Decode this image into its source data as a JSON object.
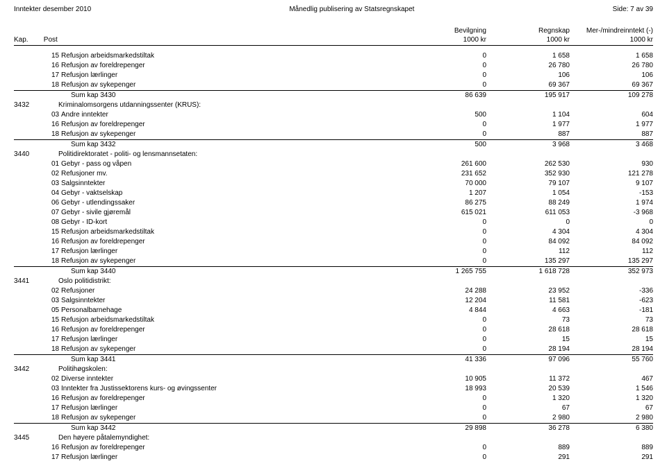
{
  "header": {
    "left": "Inntekter desember 2010",
    "center": "Månedlig publisering av Statsregnskapet",
    "right": "Side: 7 av 39"
  },
  "columns": {
    "kap": "Kap.",
    "post": "Post",
    "c1a": "Bevilgning",
    "c1b": "1000 kr",
    "c2a": "Regnskap",
    "c2b": "1000 kr",
    "c3a": "Mer-/mindreinntekt (-)",
    "c3b": "1000 kr"
  },
  "rows": [
    {
      "post": "15",
      "label": "Refusjon arbeidsmarkedstiltak",
      "c1": "0",
      "c2": "1 658",
      "c3": "1 658"
    },
    {
      "post": "16",
      "label": "Refusjon av foreldrepenger",
      "c1": "0",
      "c2": "26 780",
      "c3": "26 780"
    },
    {
      "post": "17",
      "label": "Refusjon lærlinger",
      "c1": "0",
      "c2": "106",
      "c3": "106"
    },
    {
      "post": "18",
      "label": "Refusjon av sykepenger",
      "c1": "0",
      "c2": "69 367",
      "c3": "69 367"
    },
    {
      "sum": true,
      "label": "Sum kap 3430",
      "c1": "86 639",
      "c2": "195 917",
      "c3": "109 278"
    },
    {
      "kap": "3432",
      "section": true,
      "label": "Kriminalomsorgens utdanningssenter (KRUS):"
    },
    {
      "post": "03",
      "label": "Andre inntekter",
      "c1": "500",
      "c2": "1 104",
      "c3": "604"
    },
    {
      "post": "16",
      "label": "Refusjon av foreldrepenger",
      "c1": "0",
      "c2": "1 977",
      "c3": "1 977"
    },
    {
      "post": "18",
      "label": "Refusjon av sykepenger",
      "c1": "0",
      "c2": "887",
      "c3": "887"
    },
    {
      "sum": true,
      "label": "Sum kap 3432",
      "c1": "500",
      "c2": "3 968",
      "c3": "3 468"
    },
    {
      "kap": "3440",
      "section": true,
      "label": "Politidirektoratet - politi- og lensmannsetaten:"
    },
    {
      "post": "01",
      "label": "Gebyr - pass og våpen",
      "c1": "261 600",
      "c2": "262 530",
      "c3": "930"
    },
    {
      "post": "02",
      "label": "Refusjoner mv.",
      "c1": "231 652",
      "c2": "352 930",
      "c3": "121 278"
    },
    {
      "post": "03",
      "label": "Salgsinntekter",
      "c1": "70 000",
      "c2": "79 107",
      "c3": "9 107"
    },
    {
      "post": "04",
      "label": "Gebyr - vaktselskap",
      "c1": "1 207",
      "c2": "1 054",
      "c3": "-153"
    },
    {
      "post": "06",
      "label": "Gebyr - utlendingssaker",
      "c1": "86 275",
      "c2": "88 249",
      "c3": "1 974"
    },
    {
      "post": "07",
      "label": "Gebyr - sivile gjøremål",
      "c1": "615 021",
      "c2": "611 053",
      "c3": "-3 968"
    },
    {
      "post": "08",
      "label": "Gebyr - ID-kort",
      "c1": "0",
      "c2": "0",
      "c3": "0"
    },
    {
      "post": "15",
      "label": "Refusjon arbeidsmarkedstiltak",
      "c1": "0",
      "c2": "4 304",
      "c3": "4 304"
    },
    {
      "post": "16",
      "label": "Refusjon av foreldrepenger",
      "c1": "0",
      "c2": "84 092",
      "c3": "84 092"
    },
    {
      "post": "17",
      "label": "Refusjon lærlinger",
      "c1": "0",
      "c2": "112",
      "c3": "112"
    },
    {
      "post": "18",
      "label": "Refusjon av sykepenger",
      "c1": "0",
      "c2": "135 297",
      "c3": "135 297"
    },
    {
      "sum": true,
      "label": "Sum kap 3440",
      "c1": "1 265 755",
      "c2": "1 618 728",
      "c3": "352 973"
    },
    {
      "kap": "3441",
      "section": true,
      "label": "Oslo politidistrikt:"
    },
    {
      "post": "02",
      "label": "Refusjoner",
      "c1": "24 288",
      "c2": "23 952",
      "c3": "-336"
    },
    {
      "post": "03",
      "label": "Salgsinntekter",
      "c1": "12 204",
      "c2": "11 581",
      "c3": "-623"
    },
    {
      "post": "05",
      "label": "Personalbarnehage",
      "c1": "4 844",
      "c2": "4 663",
      "c3": "-181"
    },
    {
      "post": "15",
      "label": "Refusjon arbeidsmarkedstiltak",
      "c1": "0",
      "c2": "73",
      "c3": "73"
    },
    {
      "post": "16",
      "label": "Refusjon av foreldrepenger",
      "c1": "0",
      "c2": "28 618",
      "c3": "28 618"
    },
    {
      "post": "17",
      "label": "Refusjon lærlinger",
      "c1": "0",
      "c2": "15",
      "c3": "15"
    },
    {
      "post": "18",
      "label": "Refusjon av sykepenger",
      "c1": "0",
      "c2": "28 194",
      "c3": "28 194"
    },
    {
      "sum": true,
      "label": "Sum kap 3441",
      "c1": "41 336",
      "c2": "97 096",
      "c3": "55 760"
    },
    {
      "kap": "3442",
      "section": true,
      "label": "Politihøgskolen:"
    },
    {
      "post": "02",
      "label": "Diverse inntekter",
      "c1": "10 905",
      "c2": "11 372",
      "c3": "467"
    },
    {
      "post": "03",
      "label": "Inntekter fra Justissektorens kurs- og øvingssenter",
      "c1": "18 993",
      "c2": "20 539",
      "c3": "1 546"
    },
    {
      "post": "16",
      "label": "Refusjon av foreldrepenger",
      "c1": "0",
      "c2": "1 320",
      "c3": "1 320"
    },
    {
      "post": "17",
      "label": "Refusjon lærlinger",
      "c1": "0",
      "c2": "67",
      "c3": "67"
    },
    {
      "post": "18",
      "label": "Refusjon av sykepenger",
      "c1": "0",
      "c2": "2 980",
      "c3": "2 980"
    },
    {
      "sum": true,
      "label": "Sum kap 3442",
      "c1": "29 898",
      "c2": "36 278",
      "c3": "6 380"
    },
    {
      "kap": "3445",
      "section": true,
      "label": "Den høyere påtalemyndighet:"
    },
    {
      "post": "16",
      "label": "Refusjon av foreldrepenger",
      "c1": "0",
      "c2": "889",
      "c3": "889"
    },
    {
      "post": "17",
      "label": "Refusjon lærlinger",
      "c1": "0",
      "c2": "291",
      "c3": "291"
    }
  ]
}
